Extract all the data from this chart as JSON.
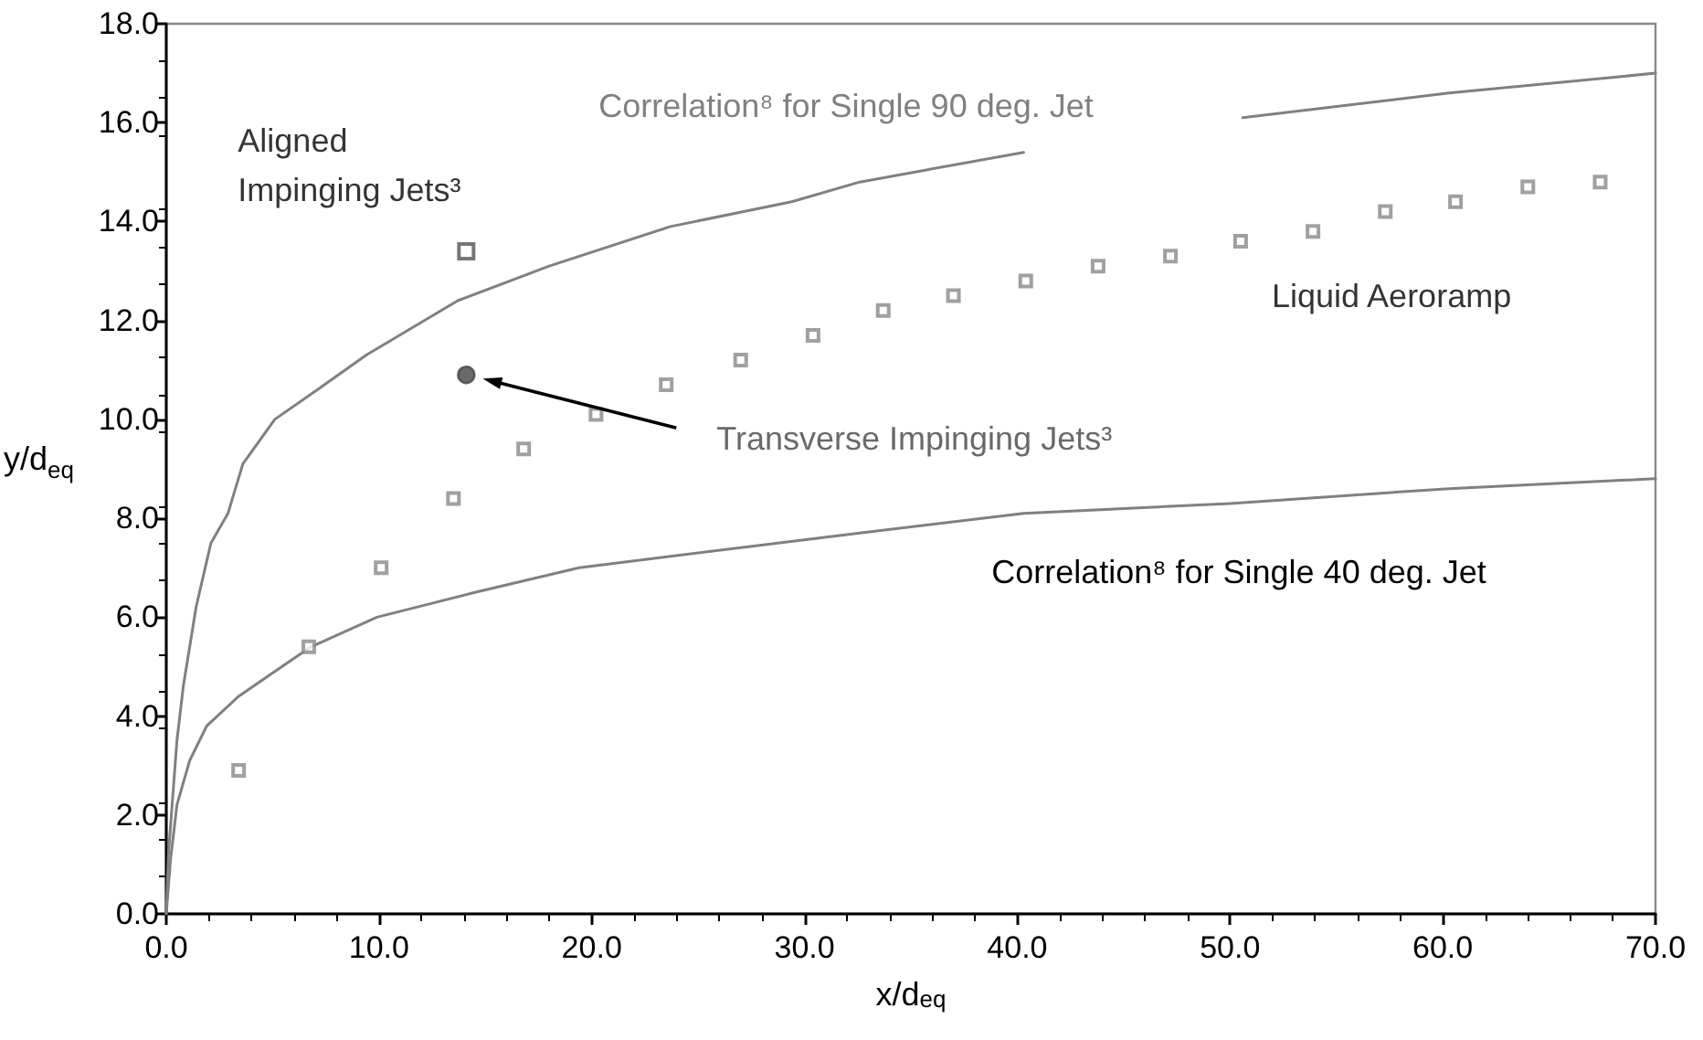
{
  "chart_data": {
    "type": "line",
    "xlabel": "x/d$_{eq}$",
    "ylabel": "y/d$_{eq}$",
    "xlim": [
      0,
      70
    ],
    "ylim": [
      0,
      18
    ],
    "xticks": [
      {
        "value": 0,
        "label": "0.0"
      },
      {
        "value": 10,
        "label": "10.0"
      },
      {
        "value": 20,
        "label": "20.0"
      },
      {
        "value": 30,
        "label": "30.0"
      },
      {
        "value": 40,
        "label": "40.0"
      },
      {
        "value": 50,
        "label": "50.0"
      },
      {
        "value": 60,
        "label": "60.0"
      },
      {
        "value": 70,
        "label": "70.0"
      }
    ],
    "yticks": [
      {
        "value": 0,
        "label": "0.0"
      },
      {
        "value": 2,
        "label": "2.0"
      },
      {
        "value": 4,
        "label": "4.0"
      },
      {
        "value": 6,
        "label": "6.0"
      },
      {
        "value": 8,
        "label": "8.0"
      },
      {
        "value": 10,
        "label": "10.0"
      },
      {
        "value": 12,
        "label": "12.0"
      },
      {
        "value": 14,
        "label": "14.0"
      },
      {
        "value": 16,
        "label": "16.0"
      },
      {
        "value": 18,
        "label": "18.0"
      }
    ],
    "grid": false,
    "legend": false,
    "series": [
      {
        "name": "Correlation⁸ for Single 90 deg. Jet",
        "marker": "none",
        "color": "#808080",
        "x": [
          0,
          0.1,
          0.5,
          0.8,
          1.4,
          2.1,
          2.9,
          3.6,
          5.1,
          7.1,
          9.4,
          13.7,
          18,
          23.7,
          29.4,
          32.6,
          40.3,
          45,
          50.6,
          60.3,
          70
        ],
        "values": [
          0,
          1.2,
          3.5,
          4.6,
          6.2,
          7.5,
          8.1,
          9.1,
          10.0,
          10.6,
          11.3,
          12.4,
          13.1,
          13.9,
          14.4,
          14.8,
          15.4,
          null,
          16.1,
          16.6,
          17.0
        ]
      },
      {
        "name": "Correlation⁸ for Single 40 deg. Jet",
        "marker": "none",
        "color": "#808080",
        "x": [
          0,
          0.2,
          0.5,
          1.1,
          1.9,
          3.4,
          5.1,
          6.8,
          9.9,
          14.5,
          19.4,
          23.1,
          32.6,
          40.3,
          50,
          60.3,
          70
        ],
        "values": [
          0,
          1.1,
          2.2,
          3.1,
          3.8,
          4.4,
          4.9,
          5.4,
          6.0,
          6.5,
          7.0,
          7.2,
          7.7,
          8.1,
          8.3,
          8.6,
          8.8
        ]
      },
      {
        "name": "Liquid Aeroramp",
        "type": "scatter",
        "marker": "square",
        "color": "#888888",
        "x": [
          3.4,
          6.7,
          10.1,
          13.5,
          16.8,
          20.2,
          23.5,
          27,
          30.4,
          33.7,
          37,
          40.4,
          43.8,
          47.2,
          50.5,
          53.9,
          57.3,
          60.6,
          64,
          67.4
        ],
        "values": [
          2.9,
          5.4,
          7.0,
          8.4,
          9.4,
          10.1,
          10.7,
          11.2,
          11.7,
          12.2,
          12.5,
          12.8,
          13.1,
          13.3,
          13.6,
          13.8,
          14.2,
          14.4,
          14.7,
          14.8
        ]
      },
      {
        "name": "Aligned Impinging Jets³",
        "type": "scatter",
        "marker": "square",
        "color": "#555555",
        "x": [
          14.1
        ],
        "values": [
          13.4
        ]
      },
      {
        "name": "Transverse Impinging Jets³",
        "type": "scatter",
        "marker": "circle",
        "color": "#444444",
        "x": [
          14.1
        ],
        "values": [
          10.9
        ]
      }
    ]
  }
}
